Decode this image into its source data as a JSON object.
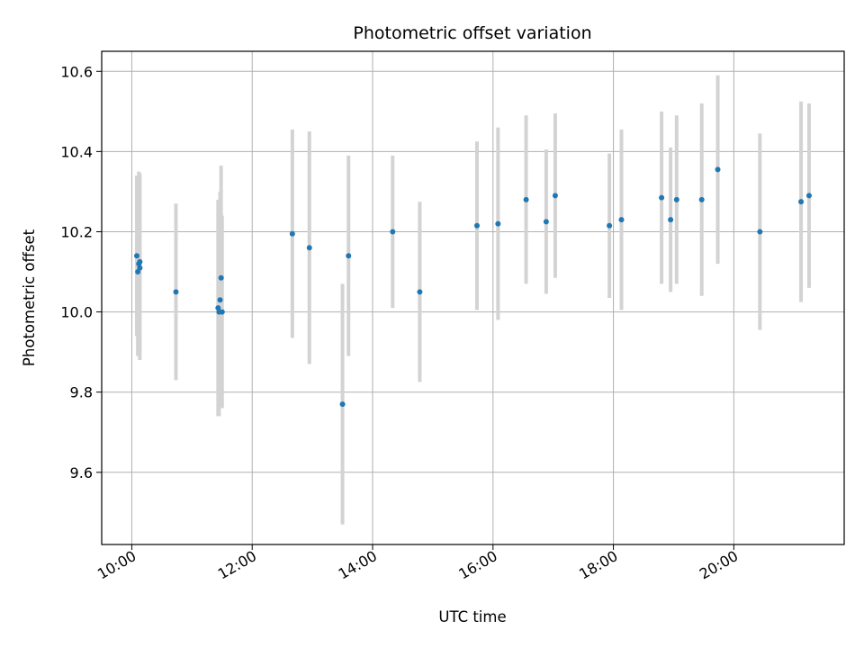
{
  "chart_data": {
    "type": "scatter",
    "title": "Photometric offset variation",
    "xlabel": "UTC time",
    "ylabel": "Photometric offset",
    "grid": true,
    "xlim": [
      "09:30",
      "21:50"
    ],
    "ylim": [
      9.42,
      10.65
    ],
    "xticks": [
      "10:00",
      "12:00",
      "14:00",
      "16:00",
      "18:00",
      "20:00"
    ],
    "yticks": [
      9.6,
      9.8,
      10.0,
      10.2,
      10.4,
      10.6
    ],
    "colors": {
      "points": "#1f77b4",
      "errorbars": "#d3d3d3",
      "grid": "#b0b0b0"
    },
    "points": [
      {
        "x": "10:05",
        "y": 10.14,
        "err": 0.2
      },
      {
        "x": "10:06",
        "y": 10.1,
        "err": 0.21
      },
      {
        "x": "10:07",
        "y": 10.12,
        "err": 0.23
      },
      {
        "x": "10:08",
        "y": 10.125,
        "err": 0.22
      },
      {
        "x": "10:08",
        "y": 10.11,
        "err": 0.23
      },
      {
        "x": "10:44",
        "y": 10.05,
        "err": 0.22
      },
      {
        "x": "11:26",
        "y": 10.01,
        "err": 0.27
      },
      {
        "x": "11:27",
        "y": 10.0,
        "err": 0.26
      },
      {
        "x": "11:28",
        "y": 10.03,
        "err": 0.27
      },
      {
        "x": "11:29",
        "y": 10.085,
        "err": 0.28
      },
      {
        "x": "11:30",
        "y": 10.0,
        "err": 0.24
      },
      {
        "x": "12:40",
        "y": 10.195,
        "err": 0.26
      },
      {
        "x": "12:57",
        "y": 10.16,
        "err": 0.29
      },
      {
        "x": "13:30",
        "y": 9.77,
        "err": 0.3
      },
      {
        "x": "13:36",
        "y": 10.14,
        "err": 0.25
      },
      {
        "x": "14:20",
        "y": 10.2,
        "err": 0.19
      },
      {
        "x": "14:47",
        "y": 10.05,
        "err": 0.225
      },
      {
        "x": "15:44",
        "y": 10.215,
        "err": 0.21
      },
      {
        "x": "16:05",
        "y": 10.22,
        "err": 0.24
      },
      {
        "x": "16:33",
        "y": 10.28,
        "err": 0.21
      },
      {
        "x": "16:53",
        "y": 10.225,
        "err": 0.18
      },
      {
        "x": "17:02",
        "y": 10.29,
        "err": 0.205
      },
      {
        "x": "17:56",
        "y": 10.215,
        "err": 0.18
      },
      {
        "x": "18:08",
        "y": 10.23,
        "err": 0.225
      },
      {
        "x": "18:48",
        "y": 10.285,
        "err": 0.215
      },
      {
        "x": "18:57",
        "y": 10.23,
        "err": 0.18
      },
      {
        "x": "19:03",
        "y": 10.28,
        "err": 0.21
      },
      {
        "x": "19:28",
        "y": 10.28,
        "err": 0.24
      },
      {
        "x": "19:44",
        "y": 10.355,
        "err": 0.235
      },
      {
        "x": "20:26",
        "y": 10.2,
        "err": 0.245
      },
      {
        "x": "21:07",
        "y": 10.275,
        "err": 0.25
      },
      {
        "x": "21:15",
        "y": 10.29,
        "err": 0.23
      }
    ]
  }
}
